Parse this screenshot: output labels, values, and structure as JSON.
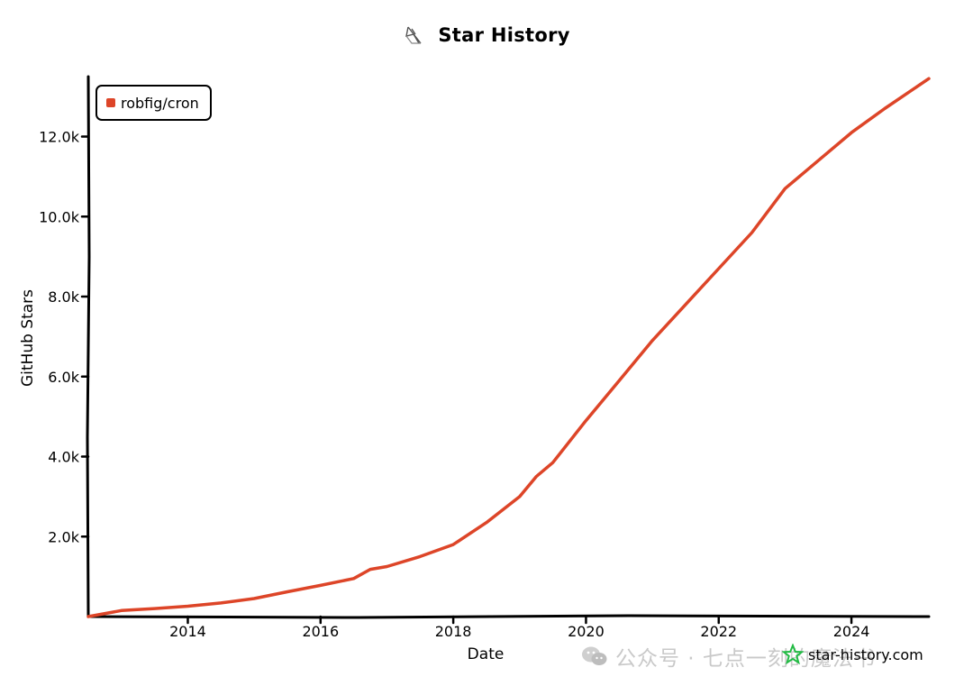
{
  "header": {
    "title": "Star History"
  },
  "watermark": {
    "site": "star-history.com",
    "wechat": "公众号 · 七点一刻的魔法书"
  },
  "colors": {
    "series": "#dd4528",
    "watermark_star": "#22bb44"
  },
  "chart_data": {
    "type": "line",
    "title": "Star History",
    "xlabel": "Date",
    "ylabel": "GitHub Stars",
    "x_ticks": [
      "2014",
      "2016",
      "2018",
      "2020",
      "2022",
      "2024"
    ],
    "y_ticks": [
      "2.0k",
      "4.0k",
      "6.0k",
      "8.0k",
      "10.0k",
      "12.0k"
    ],
    "xlim": [
      "2012-07",
      "2025-03"
    ],
    "ylim": [
      0,
      13500
    ],
    "grid": false,
    "legend_position": "top-left",
    "series": [
      {
        "name": "robfig/cron",
        "color": "#dd4528",
        "points": [
          [
            "2012-07",
            0
          ],
          [
            "2013-01",
            150
          ],
          [
            "2013-07",
            200
          ],
          [
            "2014-01",
            260
          ],
          [
            "2014-07",
            340
          ],
          [
            "2015-01",
            450
          ],
          [
            "2015-07",
            620
          ],
          [
            "2016-01",
            780
          ],
          [
            "2016-07",
            950
          ],
          [
            "2016-10",
            1180
          ],
          [
            "2017-01",
            1250
          ],
          [
            "2017-07",
            1500
          ],
          [
            "2018-01",
            1800
          ],
          [
            "2018-07",
            2350
          ],
          [
            "2019-01",
            3000
          ],
          [
            "2019-04",
            3500
          ],
          [
            "2019-07",
            3850
          ],
          [
            "2020-01",
            4900
          ],
          [
            "2020-07",
            5900
          ],
          [
            "2021-01",
            6900
          ],
          [
            "2021-07",
            7800
          ],
          [
            "2022-01",
            8700
          ],
          [
            "2022-07",
            9600
          ],
          [
            "2023-01",
            10700
          ],
          [
            "2023-07",
            11400
          ],
          [
            "2024-01",
            12100
          ],
          [
            "2024-07",
            12700
          ],
          [
            "2025-03",
            13450
          ]
        ]
      }
    ]
  }
}
